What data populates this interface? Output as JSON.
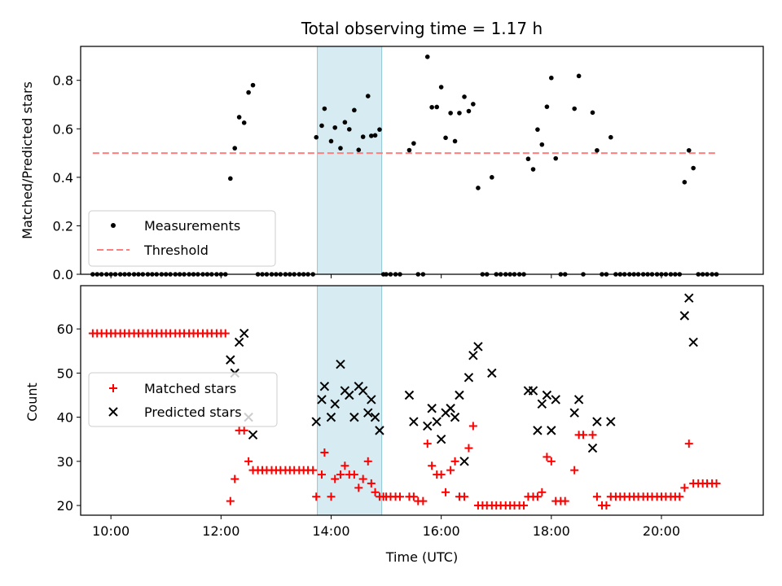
{
  "chart_data": [
    {
      "type": "scatter",
      "title": "Total observing time = 1.17 h",
      "xlabel": "",
      "ylabel": "Matched/Predicted stars",
      "xlim": [
        9.45,
        21.85
      ],
      "ylim": [
        0.0,
        0.94
      ],
      "y_ticks": [
        0.0,
        0.2,
        0.4,
        0.6,
        0.8
      ],
      "y_tick_labels": [
        "0.0",
        "0.2",
        "0.4",
        "0.6",
        "0.8"
      ],
      "shaded_interval": [
        13.75,
        14.92
      ],
      "threshold": {
        "name": "Threshold",
        "value": 0.5,
        "x_range": [
          9.67,
          21.0
        ],
        "color": "#ff7f7f"
      },
      "legend": {
        "position": "lower-left",
        "entries": [
          "Measurements",
          "Threshold"
        ]
      },
      "series": [
        {
          "name": "Measurements",
          "marker": "dot",
          "color": "#000000",
          "x": [
            9.67,
            9.75,
            9.83,
            9.92,
            10.0,
            10.08,
            10.17,
            10.25,
            10.33,
            10.42,
            10.5,
            10.58,
            10.67,
            10.75,
            10.83,
            10.92,
            11.0,
            11.08,
            11.17,
            11.25,
            11.33,
            11.42,
            11.5,
            11.58,
            11.67,
            11.75,
            11.83,
            11.92,
            12.0,
            12.08,
            12.17,
            12.25,
            12.33,
            12.42,
            12.5,
            12.58,
            12.67,
            12.75,
            12.83,
            12.92,
            13.0,
            13.08,
            13.17,
            13.25,
            13.33,
            13.42,
            13.5,
            13.58,
            13.67,
            13.73,
            13.83,
            13.88,
            14.0,
            14.07,
            14.17,
            14.25,
            14.33,
            14.42,
            14.5,
            14.58,
            14.67,
            14.73,
            14.8,
            14.88,
            14.95,
            15.0,
            15.08,
            15.17,
            15.25,
            15.42,
            15.5,
            15.58,
            15.67,
            15.75,
            15.83,
            15.92,
            16.0,
            16.08,
            16.17,
            16.25,
            16.33,
            16.42,
            16.5,
            16.58,
            16.67,
            16.75,
            16.83,
            16.92,
            17.0,
            17.08,
            17.17,
            17.25,
            17.33,
            17.42,
            17.5,
            17.58,
            17.67,
            17.75,
            17.83,
            17.92,
            18.0,
            18.08,
            18.17,
            18.25,
            18.42,
            18.5,
            18.58,
            18.75,
            18.83,
            18.92,
            19.0,
            19.08,
            19.17,
            19.25,
            19.33,
            19.42,
            19.5,
            19.58,
            19.67,
            19.75,
            19.83,
            19.92,
            20.0,
            20.08,
            20.17,
            20.25,
            20.33,
            20.42,
            20.5,
            20.58,
            20.67,
            20.75,
            20.83,
            20.92,
            21.0
          ],
          "y": [
            0.0,
            0.0,
            0.0,
            0.0,
            0.0,
            0.0,
            0.0,
            0.0,
            0.0,
            0.0,
            0.0,
            0.0,
            0.0,
            0.0,
            0.0,
            0.0,
            0.0,
            0.0,
            0.0,
            0.0,
            0.0,
            0.0,
            0.0,
            0.0,
            0.0,
            0.0,
            0.0,
            0.0,
            0.0,
            0.0,
            0.395,
            0.52,
            0.648,
            0.625,
            0.75,
            0.78,
            0.0,
            0.0,
            0.0,
            0.0,
            0.0,
            0.0,
            0.0,
            0.0,
            0.0,
            0.0,
            0.0,
            0.0,
            0.0,
            0.565,
            0.613,
            0.683,
            0.549,
            0.605,
            0.52,
            0.627,
            0.598,
            0.677,
            0.513,
            0.567,
            0.735,
            0.571,
            0.573,
            0.597,
            0.0,
            0.0,
            0.0,
            0.0,
            0.0,
            0.512,
            0.54,
            0.0,
            0.0,
            0.897,
            0.689,
            0.69,
            0.772,
            0.563,
            0.665,
            0.549,
            0.665,
            0.732,
            0.673,
            0.702,
            0.356,
            0.0,
            0.0,
            0.4,
            0.0,
            0.0,
            0.0,
            0.0,
            0.0,
            0.0,
            0.0,
            0.476,
            0.433,
            0.597,
            0.535,
            0.691,
            0.81,
            0.478,
            0.0,
            0.0,
            0.683,
            0.818,
            0.0,
            0.667,
            0.511,
            0.0,
            0.0,
            0.565,
            0.0,
            0.0,
            0.0,
            0.0,
            0.0,
            0.0,
            0.0,
            0.0,
            0.0,
            0.0,
            0.0,
            0.0,
            0.0,
            0.0,
            0.0,
            0.38,
            0.511,
            0.438,
            0.0,
            0.0,
            0.0,
            0.0,
            0.0
          ]
        }
      ]
    },
    {
      "type": "scatter",
      "title": "",
      "xlabel": "Time (UTC)",
      "ylabel": "Count",
      "xlim": [
        9.45,
        21.85
      ],
      "ylim": [
        17.8,
        69.8
      ],
      "x_ticks": [
        10,
        12,
        14,
        16,
        18,
        20
      ],
      "x_tick_labels": [
        "10:00",
        "12:00",
        "14:00",
        "16:00",
        "18:00",
        "20:00"
      ],
      "y_ticks": [
        20,
        30,
        40,
        50,
        60
      ],
      "y_tick_labels": [
        "20",
        "30",
        "40",
        "50",
        "60"
      ],
      "shaded_interval": [
        13.75,
        14.92
      ],
      "legend": {
        "position": "center-left",
        "entries": [
          "Matched stars",
          "Predicted stars"
        ]
      },
      "series": [
        {
          "name": "Matched stars",
          "marker": "plus",
          "color": "#ff0000",
          "x": [
            9.67,
            9.75,
            9.83,
            9.92,
            10.0,
            10.08,
            10.17,
            10.25,
            10.33,
            10.42,
            10.5,
            10.58,
            10.67,
            10.75,
            10.83,
            10.92,
            11.0,
            11.08,
            11.17,
            11.25,
            11.33,
            11.42,
            11.5,
            11.58,
            11.67,
            11.75,
            11.83,
            11.92,
            12.0,
            12.08,
            12.17,
            12.25,
            12.33,
            12.42,
            12.5,
            12.58,
            12.67,
            12.75,
            12.83,
            12.92,
            13.0,
            13.08,
            13.17,
            13.25,
            13.33,
            13.42,
            13.5,
            13.58,
            13.67,
            13.73,
            13.83,
            13.88,
            14.0,
            14.07,
            14.17,
            14.25,
            14.33,
            14.42,
            14.5,
            14.58,
            14.67,
            14.73,
            14.8,
            14.88,
            14.95,
            15.0,
            15.08,
            15.17,
            15.25,
            15.42,
            15.5,
            15.58,
            15.67,
            15.75,
            15.83,
            15.92,
            16.0,
            16.08,
            16.17,
            16.25,
            16.33,
            16.42,
            16.5,
            16.58,
            16.67,
            16.75,
            16.83,
            16.92,
            17.0,
            17.08,
            17.17,
            17.25,
            17.33,
            17.42,
            17.5,
            17.58,
            17.67,
            17.75,
            17.83,
            17.92,
            18.0,
            18.08,
            18.17,
            18.25,
            18.42,
            18.5,
            18.58,
            18.75,
            18.83,
            18.92,
            19.0,
            19.08,
            19.17,
            19.25,
            19.33,
            19.42,
            19.5,
            19.58,
            19.67,
            19.75,
            19.83,
            19.92,
            20.0,
            20.08,
            20.17,
            20.25,
            20.33,
            20.42,
            20.5,
            20.58,
            20.67,
            20.75,
            20.83,
            20.92,
            21.0
          ],
          "y": [
            59,
            59,
            59,
            59,
            59,
            59,
            59,
            59,
            59,
            59,
            59,
            59,
            59,
            59,
            59,
            59,
            59,
            59,
            59,
            59,
            59,
            59,
            59,
            59,
            59,
            59,
            59,
            59,
            59,
            59,
            21,
            26,
            37,
            37,
            30,
            28,
            28,
            28,
            28,
            28,
            28,
            28,
            28,
            28,
            28,
            28,
            28,
            28,
            28,
            22,
            27,
            32,
            22,
            26,
            27,
            29,
            27,
            27,
            24,
            26,
            30,
            25,
            23,
            22,
            22,
            22,
            22,
            22,
            22,
            22,
            22,
            21,
            21,
            34,
            29,
            27,
            27,
            23,
            28,
            30,
            22,
            22,
            33,
            38,
            20,
            20,
            20,
            20,
            20,
            20,
            20,
            20,
            20,
            20,
            20,
            22,
            22,
            22,
            23,
            31,
            30,
            21,
            21,
            21,
            28,
            36,
            36,
            36,
            22,
            20,
            20,
            22,
            22,
            22,
            22,
            22,
            22,
            22,
            22,
            22,
            22,
            22,
            22,
            22,
            22,
            22,
            22,
            24,
            34,
            25,
            25,
            25,
            25,
            25,
            25
          ]
        },
        {
          "name": "Predicted stars",
          "marker": "x",
          "color": "#000000",
          "x": [
            12.17,
            12.25,
            12.33,
            12.42,
            12.5,
            12.58,
            13.73,
            13.83,
            13.88,
            14.0,
            14.07,
            14.17,
            14.25,
            14.33,
            14.42,
            14.5,
            14.58,
            14.67,
            14.73,
            14.8,
            14.88,
            15.42,
            15.5,
            15.75,
            15.83,
            15.92,
            16.0,
            16.08,
            16.17,
            16.25,
            16.33,
            16.42,
            16.5,
            16.58,
            16.67,
            16.92,
            17.58,
            17.67,
            17.75,
            17.83,
            17.92,
            18.0,
            18.08,
            18.42,
            18.5,
            18.75,
            18.83,
            19.08,
            20.42,
            20.5,
            20.58
          ],
          "y": [
            53,
            50,
            57,
            59,
            40,
            36,
            39,
            44,
            47,
            40,
            43,
            52,
            46,
            45,
            40,
            47,
            46,
            41,
            44,
            40,
            37,
            45,
            39,
            38,
            42,
            39,
            35,
            41,
            42,
            40,
            45,
            30,
            49,
            54,
            56,
            50,
            46,
            46,
            37,
            43,
            45,
            37,
            44,
            41,
            44,
            33,
            39,
            39,
            63,
            67,
            57
          ]
        }
      ]
    }
  ]
}
